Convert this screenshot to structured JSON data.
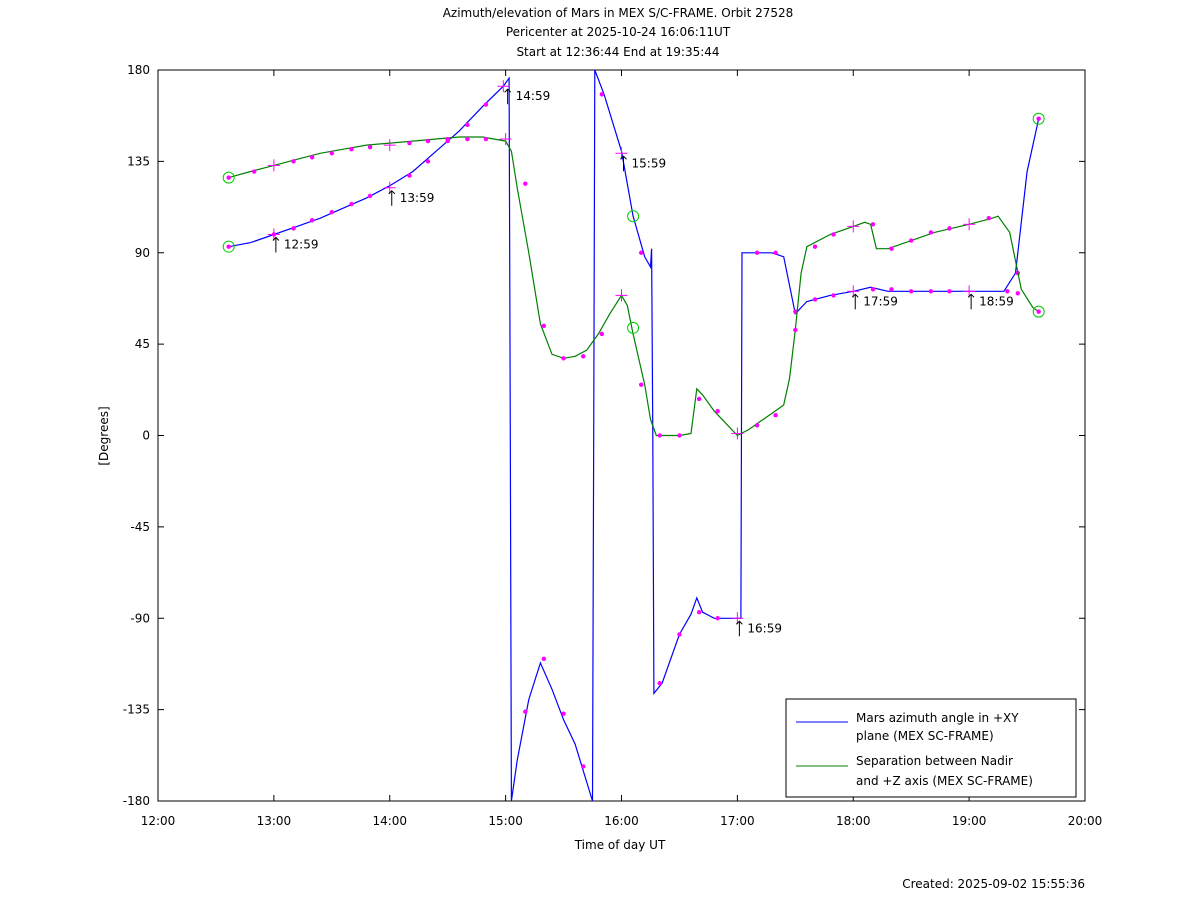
{
  "chart_data": {
    "type": "line",
    "title": [
      "Azimuth/elevation of Mars in MEX S/C-FRAME.  Orbit 27528",
      "Pericenter at 2025-10-24 16:06:11UT",
      "Start at 12:36:44 End at 19:35:44"
    ],
    "xlabel": "Time of day UT",
    "ylabel": "[Degrees]",
    "xlim": [
      12.0,
      20.0
    ],
    "ylim": [
      -180,
      180
    ],
    "x_ticks": [
      12,
      13,
      14,
      15,
      16,
      17,
      18,
      19,
      20
    ],
    "x_tick_labels": [
      "12:00",
      "13:00",
      "14:00",
      "15:00",
      "16:00",
      "17:00",
      "18:00",
      "19:00",
      "20:00"
    ],
    "y_ticks": [
      180,
      135,
      90,
      45,
      0,
      -45,
      -90,
      -135,
      -180
    ],
    "y_tick_labels": [
      "180",
      "135",
      "90",
      "45",
      "0",
      "-45",
      "-90",
      "-135",
      "-180"
    ],
    "grid": false,
    "legend_position": "bottom-right",
    "series": [
      {
        "name": "Mars azimuth angle in +XY plane (MEX SC-FRAME)",
        "legend_lines": [
          "Mars azimuth angle in +XY",
          "plane (MEX SC-FRAME)"
        ],
        "color": "#0000ff",
        "points": [
          [
            12.61,
            93
          ],
          [
            12.8,
            95
          ],
          [
            13.0,
            99
          ],
          [
            13.2,
            103
          ],
          [
            13.4,
            107
          ],
          [
            13.6,
            112
          ],
          [
            13.8,
            117
          ],
          [
            14.0,
            123
          ],
          [
            14.2,
            130
          ],
          [
            14.4,
            140
          ],
          [
            14.6,
            150
          ],
          [
            14.8,
            162
          ],
          [
            14.98,
            172
          ],
          [
            15.03,
            176
          ],
          [
            15.04,
            0
          ],
          [
            15.05,
            -180
          ],
          [
            15.1,
            -160
          ],
          [
            15.2,
            -130
          ],
          [
            15.3,
            -112
          ],
          [
            15.4,
            -125
          ],
          [
            15.5,
            -140
          ],
          [
            15.6,
            -152
          ],
          [
            15.75,
            -180
          ],
          [
            15.76,
            0
          ],
          [
            15.77,
            180
          ],
          [
            15.85,
            168
          ],
          [
            16.0,
            140
          ],
          [
            16.1,
            108
          ],
          [
            16.2,
            88
          ],
          [
            16.25,
            83
          ],
          [
            16.26,
            92
          ],
          [
            16.27,
            0
          ],
          [
            16.28,
            -127
          ],
          [
            16.35,
            -122
          ],
          [
            16.5,
            -98
          ],
          [
            16.6,
            -88
          ],
          [
            16.65,
            -80
          ],
          [
            16.7,
            -87
          ],
          [
            16.8,
            -90
          ],
          [
            17.0,
            -90
          ],
          [
            17.03,
            -90
          ],
          [
            17.04,
            90
          ],
          [
            17.3,
            90
          ],
          [
            17.4,
            88
          ],
          [
            17.5,
            60
          ],
          [
            17.6,
            66
          ],
          [
            17.8,
            69
          ],
          [
            18.0,
            71
          ],
          [
            18.15,
            73
          ],
          [
            18.3,
            71
          ],
          [
            18.5,
            71
          ],
          [
            18.8,
            71
          ],
          [
            19.0,
            71
          ],
          [
            19.3,
            71
          ],
          [
            19.4,
            80
          ],
          [
            19.5,
            130
          ],
          [
            19.6,
            156
          ]
        ],
        "markers_small": [
          [
            12.61,
            93
          ],
          [
            13.0,
            99
          ],
          [
            13.17,
            102
          ],
          [
            13.33,
            106
          ],
          [
            13.5,
            110
          ],
          [
            13.67,
            114
          ],
          [
            13.83,
            118
          ],
          [
            14.17,
            128
          ],
          [
            14.33,
            135
          ],
          [
            14.5,
            145
          ],
          [
            14.67,
            153
          ],
          [
            14.83,
            163
          ],
          [
            15.17,
            -136
          ],
          [
            15.33,
            -110
          ],
          [
            15.5,
            -137
          ],
          [
            15.67,
            -163
          ],
          [
            15.83,
            168
          ],
          [
            16.17,
            90
          ],
          [
            16.33,
            -122
          ],
          [
            16.5,
            -98
          ],
          [
            16.67,
            -87
          ],
          [
            16.83,
            -90
          ],
          [
            17.17,
            90
          ],
          [
            17.33,
            90
          ],
          [
            17.5,
            61
          ],
          [
            17.67,
            67
          ],
          [
            17.83,
            69
          ],
          [
            18.17,
            72
          ],
          [
            18.33,
            72
          ],
          [
            18.5,
            71
          ],
          [
            18.67,
            71
          ],
          [
            18.83,
            71
          ],
          [
            19.33,
            71
          ],
          [
            19.42,
            80
          ],
          [
            19.6,
            156
          ]
        ],
        "markers_hour": [
          [
            13.0,
            99
          ],
          [
            14.0,
            122
          ],
          [
            14.98,
            172
          ],
          [
            16.0,
            139
          ],
          [
            17.0,
            -90
          ],
          [
            18.0,
            71
          ],
          [
            19.0,
            71
          ]
        ],
        "markers_circle": [
          [
            12.61,
            93
          ],
          [
            16.1,
            108
          ],
          [
            19.6,
            156
          ]
        ],
        "hour_labels": [
          {
            "x": 13.0,
            "y": 99,
            "text": "12:59"
          },
          {
            "x": 14.0,
            "y": 122,
            "text": "13:59"
          },
          {
            "x": 15.0,
            "y": 172,
            "text": "14:59"
          },
          {
            "x": 16.0,
            "y": 139,
            "text": "15:59"
          },
          {
            "x": 17.0,
            "y": -90,
            "text": "16:59"
          },
          {
            "x": 18.0,
            "y": 71,
            "text": "17:59"
          },
          {
            "x": 19.0,
            "y": 71,
            "text": "18:59"
          }
        ]
      },
      {
        "name": "Separation between Nadir and +Z axis (MEX SC-FRAME)",
        "legend_lines": [
          "Separation between Nadir",
          "and +Z axis (MEX SC-FRAME)"
        ],
        "color": "#008000",
        "points": [
          [
            12.61,
            127
          ],
          [
            12.8,
            130
          ],
          [
            13.0,
            133
          ],
          [
            13.2,
            136
          ],
          [
            13.4,
            139
          ],
          [
            13.6,
            141
          ],
          [
            13.8,
            143
          ],
          [
            14.0,
            144
          ],
          [
            14.2,
            145
          ],
          [
            14.4,
            146
          ],
          [
            14.6,
            147
          ],
          [
            14.8,
            147
          ],
          [
            15.0,
            145
          ],
          [
            15.05,
            140
          ],
          [
            15.1,
            122
          ],
          [
            15.2,
            90
          ],
          [
            15.3,
            55
          ],
          [
            15.4,
            40
          ],
          [
            15.5,
            38
          ],
          [
            15.6,
            39
          ],
          [
            15.7,
            42
          ],
          [
            15.8,
            50
          ],
          [
            15.9,
            60
          ],
          [
            16.0,
            69
          ],
          [
            16.05,
            64
          ],
          [
            16.1,
            50
          ],
          [
            16.2,
            25
          ],
          [
            16.25,
            8
          ],
          [
            16.3,
            0
          ],
          [
            16.5,
            0
          ],
          [
            16.6,
            1
          ],
          [
            16.65,
            23
          ],
          [
            16.7,
            20
          ],
          [
            16.8,
            12
          ],
          [
            16.9,
            6
          ],
          [
            17.0,
            0
          ],
          [
            17.1,
            3
          ],
          [
            17.2,
            7
          ],
          [
            17.3,
            11
          ],
          [
            17.4,
            15
          ],
          [
            17.45,
            28
          ],
          [
            17.5,
            52
          ],
          [
            17.55,
            80
          ],
          [
            17.6,
            93
          ],
          [
            17.8,
            99
          ],
          [
            18.0,
            103
          ],
          [
            18.1,
            105
          ],
          [
            18.15,
            104
          ],
          [
            18.2,
            92
          ],
          [
            18.3,
            92
          ],
          [
            18.5,
            96
          ],
          [
            18.7,
            100
          ],
          [
            19.0,
            104
          ],
          [
            19.2,
            107
          ],
          [
            19.25,
            108
          ],
          [
            19.35,
            100
          ],
          [
            19.45,
            72
          ],
          [
            19.55,
            63
          ],
          [
            19.6,
            61
          ]
        ],
        "markers_small": [
          [
            12.61,
            127
          ],
          [
            12.83,
            130
          ],
          [
            13.17,
            135
          ],
          [
            13.33,
            137
          ],
          [
            13.5,
            139
          ],
          [
            13.67,
            141
          ],
          [
            13.83,
            142
          ],
          [
            14.17,
            144
          ],
          [
            14.33,
            145
          ],
          [
            14.5,
            146
          ],
          [
            14.67,
            146
          ],
          [
            14.83,
            146
          ],
          [
            15.17,
            124
          ],
          [
            15.33,
            54
          ],
          [
            15.5,
            38
          ],
          [
            15.67,
            39
          ],
          [
            15.83,
            50
          ],
          [
            16.17,
            25
          ],
          [
            16.33,
            0
          ],
          [
            16.5,
            0
          ],
          [
            16.67,
            18
          ],
          [
            16.83,
            12
          ],
          [
            17.17,
            5
          ],
          [
            17.33,
            10
          ],
          [
            17.5,
            52
          ],
          [
            17.67,
            93
          ],
          [
            17.83,
            99
          ],
          [
            18.17,
            104
          ],
          [
            18.33,
            92
          ],
          [
            18.5,
            96
          ],
          [
            18.67,
            100
          ],
          [
            18.83,
            102
          ],
          [
            19.17,
            107
          ],
          [
            19.42,
            70
          ],
          [
            19.6,
            61
          ]
        ],
        "markers_hour": [
          [
            13.0,
            133
          ],
          [
            14.0,
            143
          ],
          [
            15.0,
            146
          ],
          [
            16.0,
            69
          ],
          [
            17.0,
            1
          ],
          [
            18.0,
            103
          ],
          [
            19.0,
            104
          ]
        ],
        "markers_circle": [
          [
            12.61,
            127
          ],
          [
            16.1,
            53
          ],
          [
            19.6,
            61
          ]
        ]
      }
    ]
  },
  "footer": {
    "created": "Created: 2025-09-02 15:55:36"
  }
}
